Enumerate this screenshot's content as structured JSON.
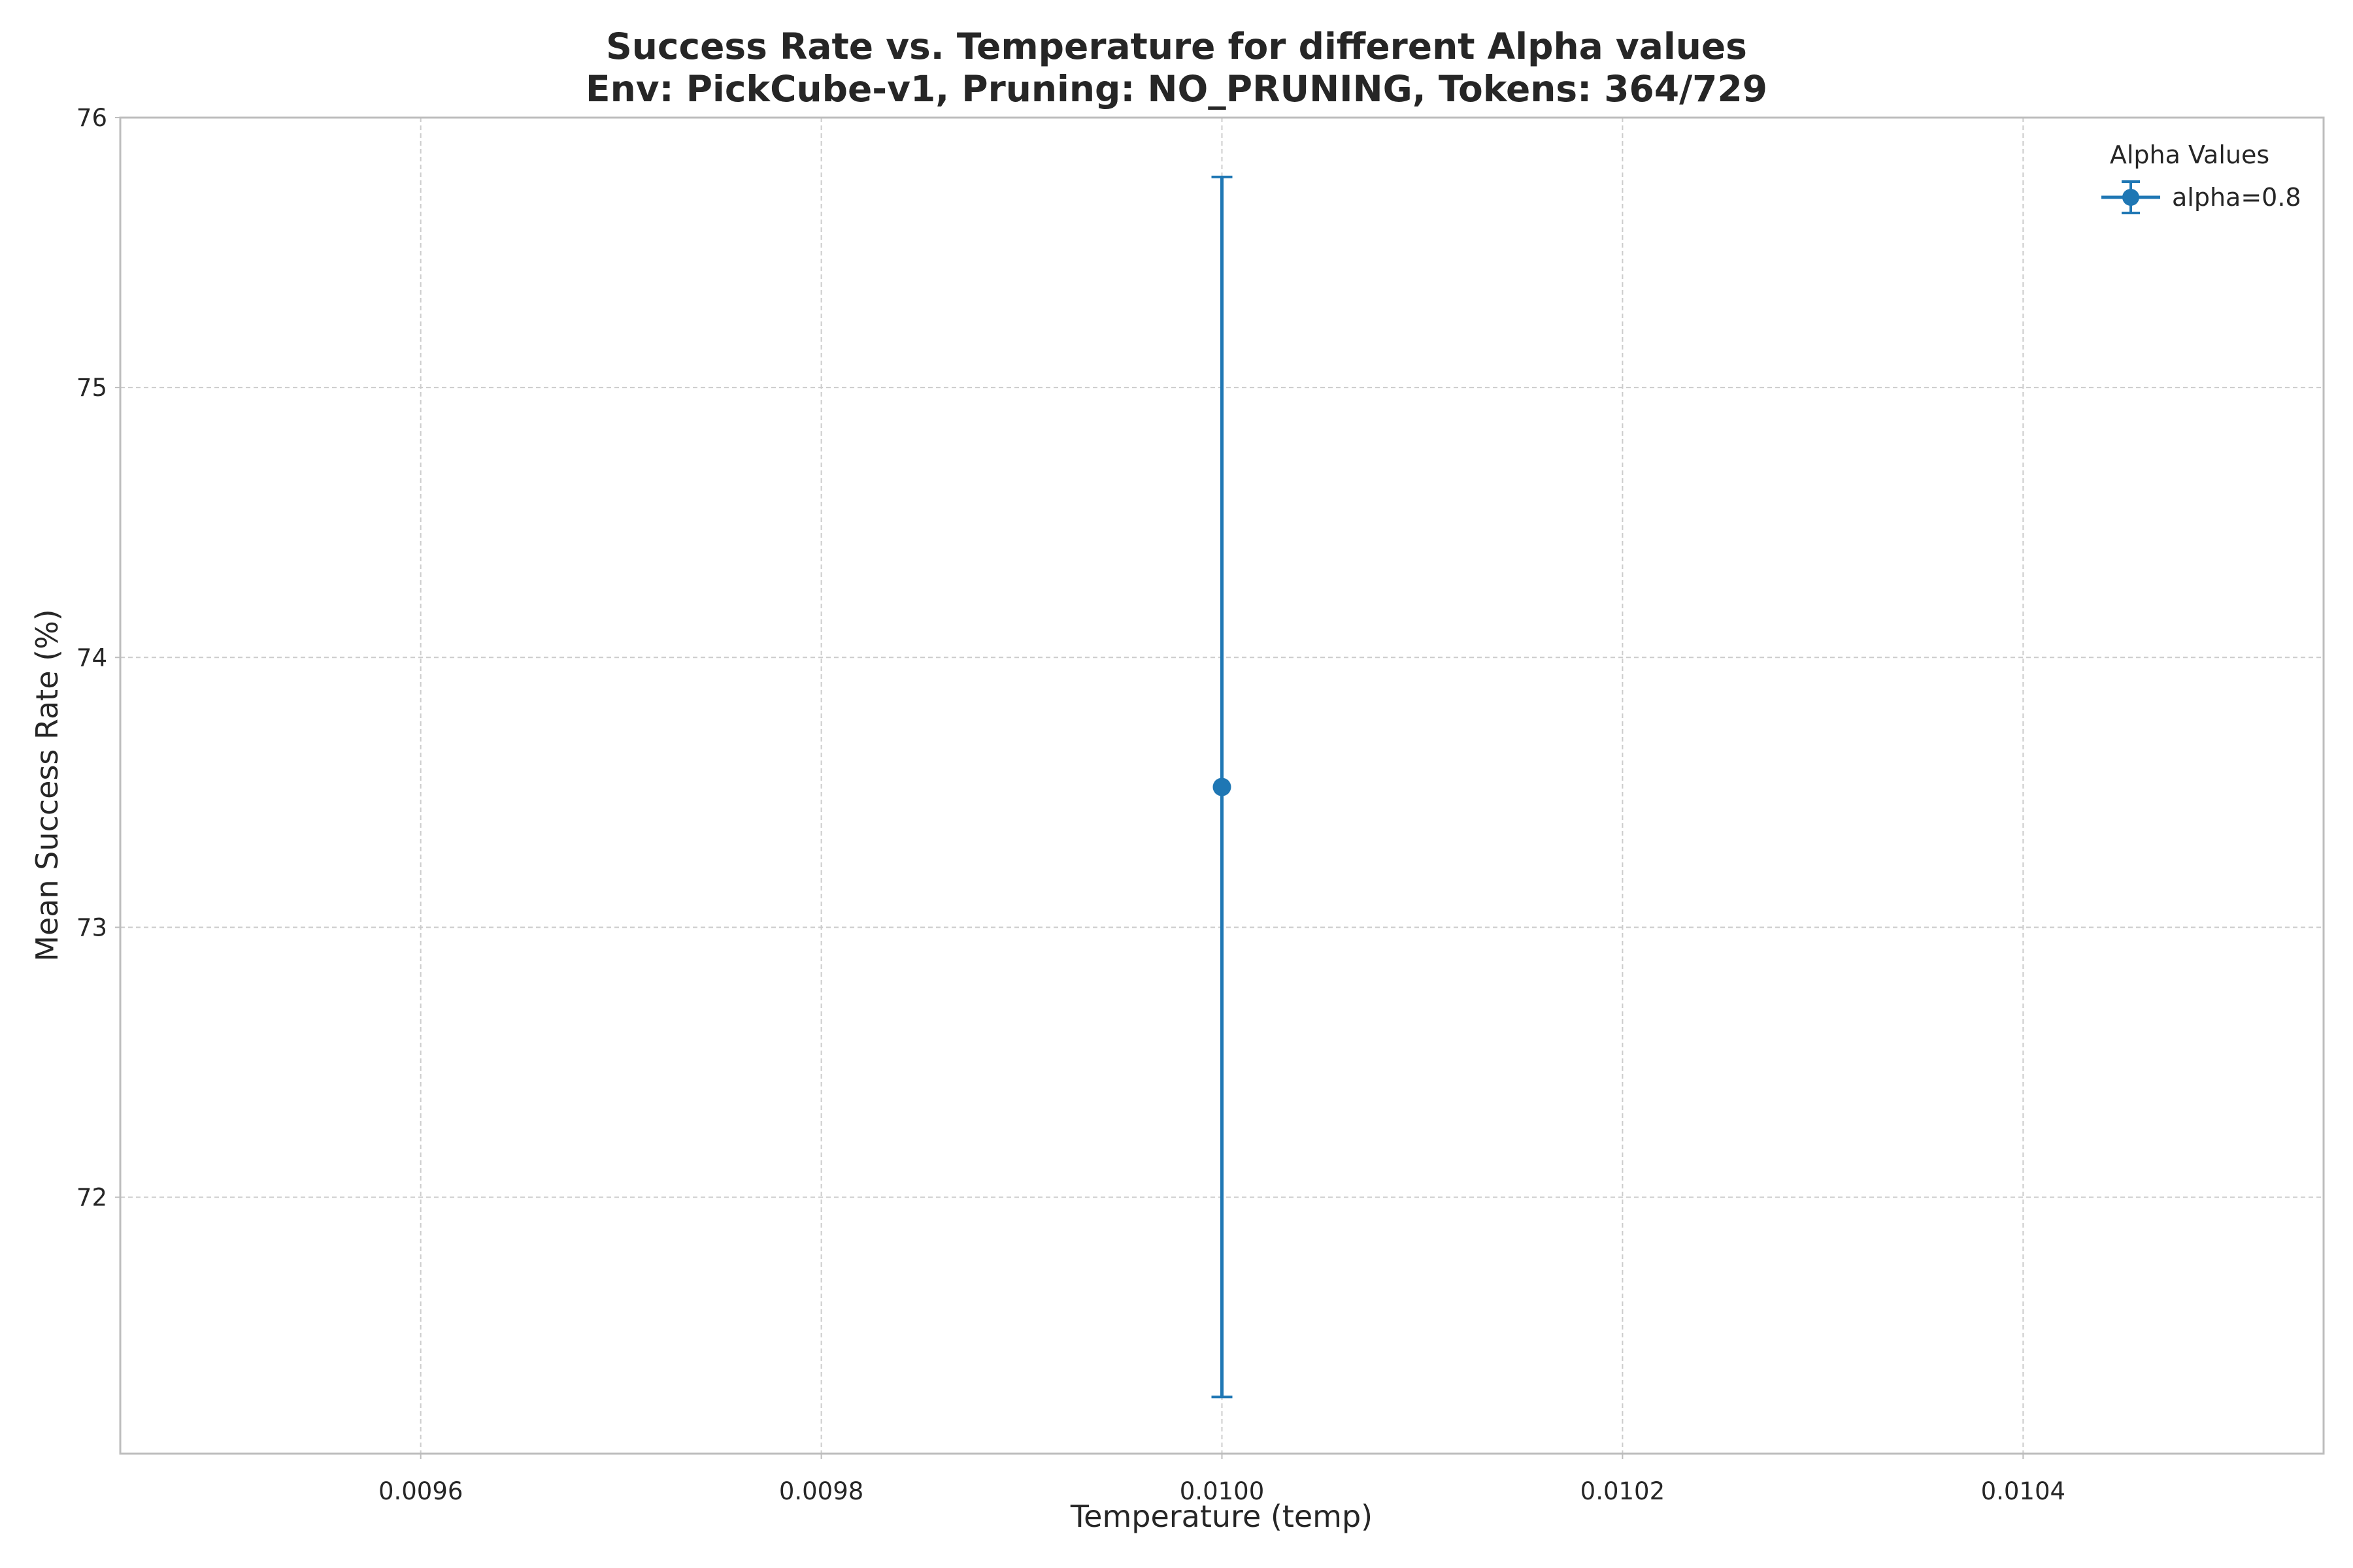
{
  "chart_data": {
    "type": "scatter",
    "title": "Success Rate vs. Temperature for different Alpha values",
    "subtitle": "Env: PickCube-v1, Pruning: NO_PRUNING, Tokens: 364/729",
    "xlabel": "Temperature (temp)",
    "ylabel": "Mean Success Rate (%)",
    "xlim": [
      0.00945,
      0.01055
    ],
    "ylim": [
      71.05,
      76.0
    ],
    "x_ticks": [
      0.0096,
      0.0098,
      0.01,
      0.0102,
      0.0104
    ],
    "x_tick_labels": [
      "0.0096",
      "0.0098",
      "0.0100",
      "0.0102",
      "0.0104"
    ],
    "y_ticks": [
      72,
      73,
      74,
      75,
      76
    ],
    "y_tick_labels": [
      "72",
      "73",
      "74",
      "75",
      "76"
    ],
    "grid": true,
    "legend": {
      "title": "Alpha Values",
      "placement": "top-right"
    },
    "series": [
      {
        "name": "alpha=0.8",
        "color": "#1f77b4",
        "marker": "circle",
        "x": [
          0.01
        ],
        "y": [
          73.52
        ],
        "error_low": [
          71.26
        ],
        "error_high": [
          75.78
        ]
      }
    ]
  }
}
